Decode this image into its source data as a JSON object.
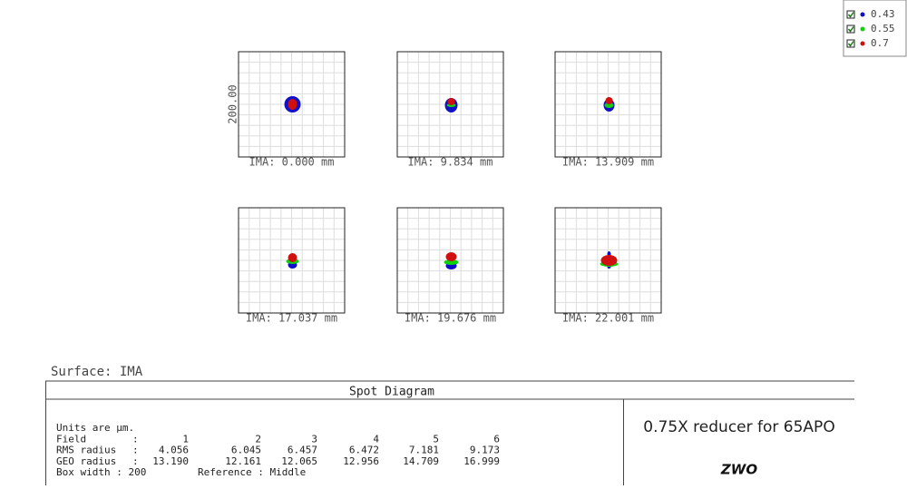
{
  "legend": [
    {
      "label": "0.43",
      "color": "#1010c8"
    },
    {
      "label": "0.55",
      "color": "#10d010"
    },
    {
      "label": "0.7",
      "color": "#d01010"
    }
  ],
  "scale_label": "200.00",
  "fields": [
    "IMA: 0.000 mm",
    "IMA: 9.834 mm",
    "IMA: 13.909 mm",
    "IMA: 17.037 mm",
    "IMA: 19.676 mm",
    "IMA: 22.001 mm"
  ],
  "surface": "Surface: IMA",
  "title": "Spot Diagram",
  "info": {
    "units": "Units are µm.",
    "header": {
      "label": "Field",
      "cells": [
        "1",
        "2",
        "3",
        "4",
        "5",
        "6"
      ]
    },
    "rows": [
      {
        "label": "RMS radius",
        "values": [
          "4.056",
          "6.045",
          "6.457",
          "6.472",
          "7.181",
          "9.173"
        ]
      },
      {
        "label": "GEO radius",
        "values": [
          "13.190",
          "12.161",
          "12.065",
          "12.956",
          "14.709",
          "16.999"
        ]
      }
    ],
    "box_width": "Box width  : 200",
    "reference": "Reference  : Middle"
  },
  "lens_title": "0.75X reducer for 65APO",
  "logo": "ZWO"
}
